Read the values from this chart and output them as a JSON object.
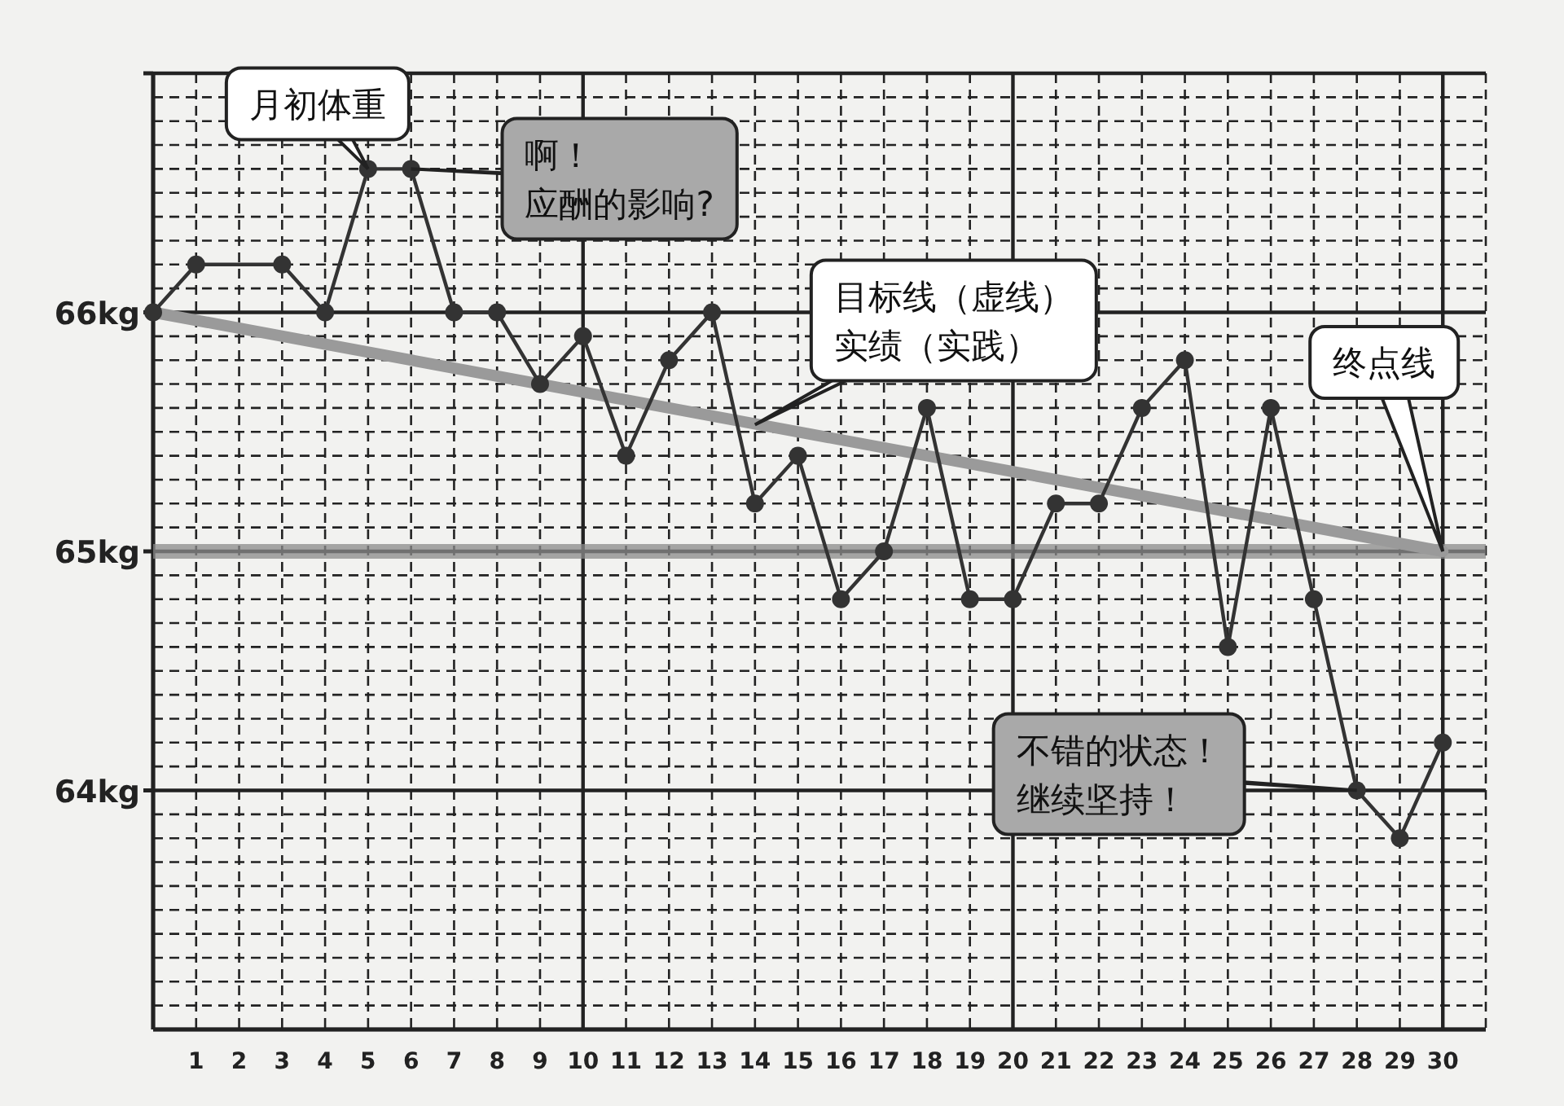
{
  "chart_data": {
    "type": "line",
    "xlim": [
      0,
      31
    ],
    "ylim": [
      63,
      67
    ],
    "xticks": [
      1,
      2,
      3,
      4,
      5,
      6,
      7,
      8,
      9,
      10,
      11,
      12,
      13,
      14,
      15,
      16,
      17,
      18,
      19,
      20,
      21,
      22,
      23,
      24,
      25,
      26,
      27,
      28,
      29,
      30
    ],
    "yticks": [
      {
        "value": 64,
        "label": "64kg"
      },
      {
        "value": 65,
        "label": "65kg"
      },
      {
        "value": 66,
        "label": "66kg"
      },
      {
        "value": 67,
        "label": null
      }
    ],
    "grid": true,
    "marker": "circle",
    "line_style": "solid",
    "series": [
      {
        "color": "#333333",
        "x": [
          0,
          1,
          3,
          4,
          5,
          6,
          7,
          8,
          9,
          10,
          11,
          12,
          13,
          14,
          15,
          16,
          17,
          18,
          19,
          20,
          21,
          22,
          23,
          24,
          25,
          26,
          27,
          28,
          29,
          30
        ],
        "values": [
          66.0,
          66.2,
          66.2,
          66.0,
          66.6,
          66.6,
          66.0,
          66.0,
          65.7,
          65.9,
          65.4,
          65.8,
          66.0,
          65.2,
          65.4,
          64.8,
          65.0,
          65.6,
          64.8,
          64.8,
          65.2,
          65.2,
          65.6,
          65.8,
          64.6,
          65.6,
          64.8,
          64.0,
          63.8,
          64.2
        ]
      },
      {
        "type": "line",
        "color": "#9a9a9a",
        "marker": "none",
        "x": [
          0,
          30
        ],
        "values": [
          66,
          65
        ]
      }
    ],
    "ref_lines": [
      {
        "axis": "y",
        "value": 65,
        "color": "#8a8a8a"
      }
    ],
    "annotations": [
      {
        "text": "月初体重",
        "x": 5,
        "y": 66.6
      },
      {
        "text": "啊！应酬的影响?",
        "x": 6,
        "y": 66.6
      },
      {
        "text": "目标线（虚线）实绩（实践）",
        "x": 14,
        "y": 65.53
      },
      {
        "text": "终点线",
        "x": 30,
        "y": 65
      },
      {
        "text": "不错的状态！继续坚持！",
        "x": 28,
        "y": 64.0
      }
    ]
  }
}
